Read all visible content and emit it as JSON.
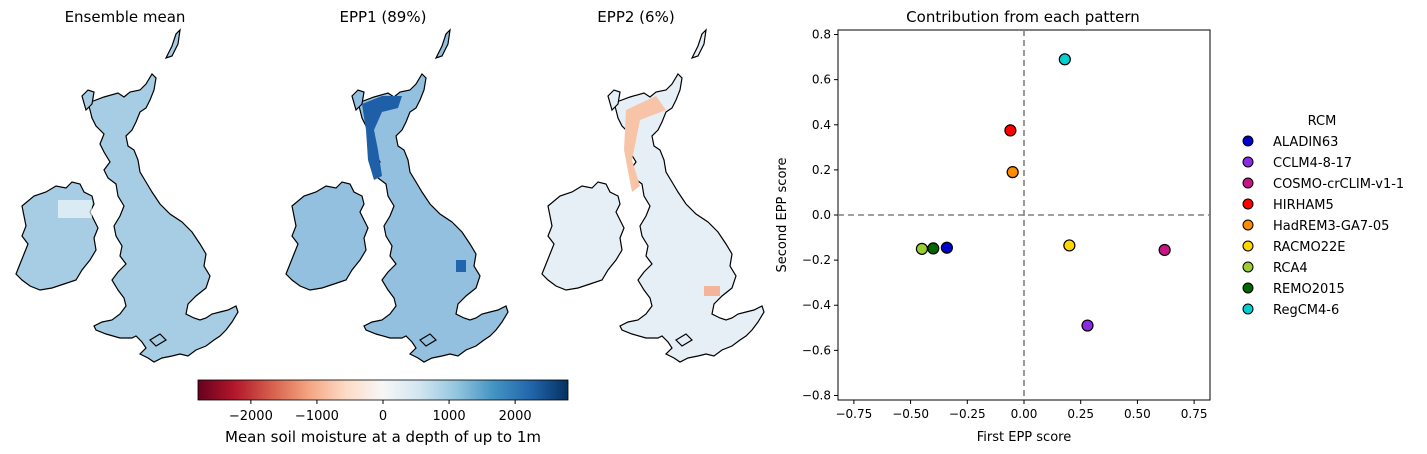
{
  "maps": [
    {
      "title": "Ensemble mean"
    },
    {
      "title": "EPP1 (89%)"
    },
    {
      "title": "EPP2 (6%)"
    }
  ],
  "colorbar": {
    "label": "Mean soil moisture at a depth of up to 1m",
    "ticks": [
      -2000,
      -1000,
      0,
      1000,
      2000
    ],
    "tick_labels": [
      "−2000",
      "−1000",
      "0",
      "1000",
      "2000"
    ],
    "range": [
      -2800,
      2800
    ],
    "colormap": "RdBu"
  },
  "chart_data": {
    "type": "scatter",
    "title": "Contribution from each pattern",
    "xlabel": "First EPP score",
    "ylabel": "Second EPP score",
    "xlim": [
      -0.82,
      0.82
    ],
    "ylim": [
      -0.82,
      0.82
    ],
    "xticks": [
      -0.75,
      -0.5,
      -0.25,
      0.0,
      0.25,
      0.5,
      0.75
    ],
    "xtick_labels": [
      "−0.75",
      "−0.50",
      "−0.25",
      "0.00",
      "0.25",
      "0.50",
      "0.75"
    ],
    "yticks": [
      -0.8,
      -0.6,
      -0.4,
      -0.2,
      0.0,
      0.2,
      0.4,
      0.6,
      0.8
    ],
    "ytick_labels": [
      "−0.8",
      "−0.6",
      "−0.4",
      "−0.2",
      "0.0",
      "0.2",
      "0.4",
      "0.6",
      "0.8"
    ],
    "reference_lines": {
      "x": 0,
      "y": 0,
      "style": "dashed",
      "color": "#808080"
    },
    "legend": {
      "title": "RCM",
      "placement": "outside-right"
    },
    "series": [
      {
        "name": "ALADIN63",
        "x": -0.34,
        "y": -0.145,
        "color": "#0000cd"
      },
      {
        "name": "CCLM4-8-17",
        "x": 0.28,
        "y": -0.49,
        "color": "#8a2be2"
      },
      {
        "name": "COSMO-crCLIM-v1-1",
        "x": 0.62,
        "y": -0.155,
        "color": "#c71585"
      },
      {
        "name": "HIRHAM5",
        "x": -0.06,
        "y": 0.375,
        "color": "#ff0000"
      },
      {
        "name": "HadREM3-GA7-05",
        "x": -0.05,
        "y": 0.19,
        "color": "#ff8c00"
      },
      {
        "name": "RACMO22E",
        "x": 0.2,
        "y": -0.135,
        "color": "#ffd700"
      },
      {
        "name": "RCA4",
        "x": -0.45,
        "y": -0.15,
        "color": "#9acd32"
      },
      {
        "name": "REMO2015",
        "x": -0.4,
        "y": -0.148,
        "color": "#006400"
      },
      {
        "name": "RegCM4-6",
        "x": 0.18,
        "y": 0.69,
        "color": "#00ced1"
      }
    ]
  }
}
